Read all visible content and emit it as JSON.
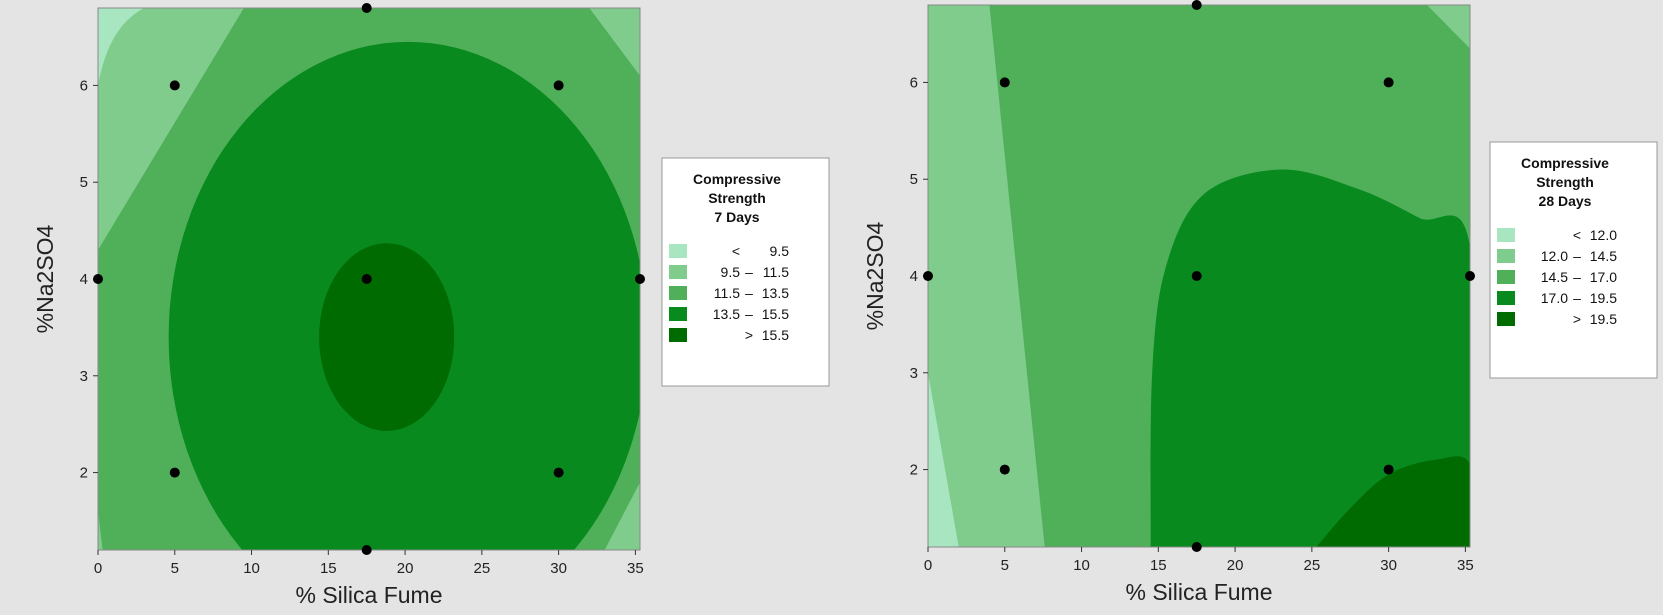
{
  "colors": {
    "band1": "#a8e6c2",
    "band2": "#80cc8c",
    "band3": "#50b05a",
    "band4": "#088a1e",
    "band5": "#006b00",
    "point": "#000000",
    "frame": "#888888",
    "background": "#e4e4e4"
  },
  "chart_data": [
    {
      "type": "contour",
      "xlabel": "% Silica Fume",
      "ylabel": "%Na2SO4",
      "xlim": [
        0,
        35.3
      ],
      "ylim": [
        1.2,
        6.8
      ],
      "x_ticks": [
        0,
        5,
        10,
        15,
        20,
        25,
        30,
        35
      ],
      "y_ticks": [
        2,
        3,
        4,
        5,
        6
      ],
      "legend": {
        "title": [
          "Compressive",
          "Strength",
          "7 Days"
        ],
        "position": "right",
        "entries": [
          {
            "lo": "<",
            "mid": "",
            "hi": "9.5"
          },
          {
            "lo": "9.5",
            "mid": "–",
            "hi": "11.5"
          },
          {
            "lo": "11.5",
            "mid": "–",
            "hi": "13.5"
          },
          {
            "lo": "13.5",
            "mid": "–",
            "hi": "15.5"
          },
          {
            "lo": "",
            "mid": ">",
            "hi": "15.5"
          }
        ]
      },
      "design_points": [
        {
          "x": 0,
          "y": 4
        },
        {
          "x": 5,
          "y": 6
        },
        {
          "x": 5,
          "y": 2
        },
        {
          "x": 17.5,
          "y": 6.8
        },
        {
          "x": 17.5,
          "y": 4
        },
        {
          "x": 17.5,
          "y": 1.2
        },
        {
          "x": 30,
          "y": 6
        },
        {
          "x": 30,
          "y": 2
        },
        {
          "x": 35.3,
          "y": 4
        }
      ],
      "regions": [
        {
          "band": 1,
          "points": [
            [
              0,
              6.0
            ],
            [
              0,
              6.8
            ],
            [
              3,
              6.8
            ]
          ]
        },
        {
          "band": 2,
          "points": [
            [
              0,
              4.3
            ],
            [
              0,
              6.0
            ],
            [
              3,
              6.8
            ],
            [
              9.5,
              6.8
            ]
          ],
          "smooth": true
        },
        {
          "band": 2,
          "points": [
            [
              32,
              6.8
            ],
            [
              35.3,
              6.8
            ],
            [
              35.3,
              6.1
            ]
          ],
          "smooth": true
        },
        {
          "band": 2,
          "points": [
            [
              0,
              1.6
            ],
            [
              0,
              1.2
            ],
            [
              0.3,
              1.2
            ]
          ],
          "smooth": true
        },
        {
          "band": 2,
          "points": [
            [
              35.3,
              1.9
            ],
            [
              35.3,
              1.2
            ],
            [
              33,
              1.2
            ]
          ],
          "smooth": true
        },
        {
          "band": 4,
          "ellipse": {
            "cx": 20.2,
            "cy": 3.4,
            "rx": 15.6,
            "ry": 3.05,
            "cut_below": 1.2
          }
        },
        {
          "band": 5,
          "ellipse": {
            "cx": 18.8,
            "cy": 3.4,
            "rx": 4.4,
            "ry": 0.97
          }
        }
      ]
    },
    {
      "type": "contour",
      "xlabel": "% Silica Fume",
      "ylabel": "%Na2SO4",
      "xlim": [
        0,
        35.3
      ],
      "ylim": [
        1.2,
        6.8
      ],
      "x_ticks": [
        0,
        5,
        10,
        15,
        20,
        25,
        30,
        35
      ],
      "y_ticks": [
        2,
        3,
        4,
        5,
        6
      ],
      "legend": {
        "title": [
          "Compressive",
          "Strength",
          "28 Days"
        ],
        "position": "right",
        "entries": [
          {
            "lo": "",
            "mid": "<",
            "hi": "12.0"
          },
          {
            "lo": "12.0",
            "mid": "–",
            "hi": "14.5"
          },
          {
            "lo": "14.5",
            "mid": "–",
            "hi": "17.0"
          },
          {
            "lo": "17.0",
            "mid": "–",
            "hi": "19.5"
          },
          {
            "lo": "",
            "mid": ">",
            "hi": "19.5"
          }
        ]
      },
      "design_points": [
        {
          "x": 0,
          "y": 4
        },
        {
          "x": 5,
          "y": 6
        },
        {
          "x": 5,
          "y": 2
        },
        {
          "x": 17.5,
          "y": 6.8
        },
        {
          "x": 17.5,
          "y": 4
        },
        {
          "x": 17.5,
          "y": 1.2
        },
        {
          "x": 30,
          "y": 6
        },
        {
          "x": 30,
          "y": 2
        },
        {
          "x": 35.3,
          "y": 4
        }
      ],
      "regions": [
        {
          "band": 2,
          "points": [
            [
              0,
              6.8
            ],
            [
              4.0,
              6.8
            ],
            [
              7.6,
              1.2
            ],
            [
              0,
              1.2
            ]
          ]
        },
        {
          "band": 1,
          "points": [
            [
              0,
              3.0
            ],
            [
              2.0,
              1.2
            ],
            [
              0,
              1.2
            ]
          ]
        },
        {
          "band": 2,
          "points": [
            [
              32.5,
              6.8
            ],
            [
              35.3,
              6.8
            ],
            [
              35.3,
              6.35
            ]
          ]
        },
        {
          "band": 4,
          "points": [
            [
              14.5,
              1.2
            ],
            [
              14.6,
              3.0
            ],
            [
              15.5,
              4.1
            ],
            [
              18.0,
              4.85
            ],
            [
              23.0,
              5.1
            ],
            [
              28.0,
              4.9
            ],
            [
              32.0,
              4.6
            ],
            [
              35.3,
              4.3
            ],
            [
              35.3,
              1.2
            ]
          ],
          "smooth": true
        },
        {
          "band": 5,
          "points": [
            [
              25.3,
              1.2
            ],
            [
              27.5,
              1.6
            ],
            [
              30.0,
              1.95
            ],
            [
              33.0,
              2.1
            ],
            [
              35.3,
              2.05
            ],
            [
              35.3,
              1.2
            ]
          ],
          "smooth": true
        }
      ]
    }
  ]
}
